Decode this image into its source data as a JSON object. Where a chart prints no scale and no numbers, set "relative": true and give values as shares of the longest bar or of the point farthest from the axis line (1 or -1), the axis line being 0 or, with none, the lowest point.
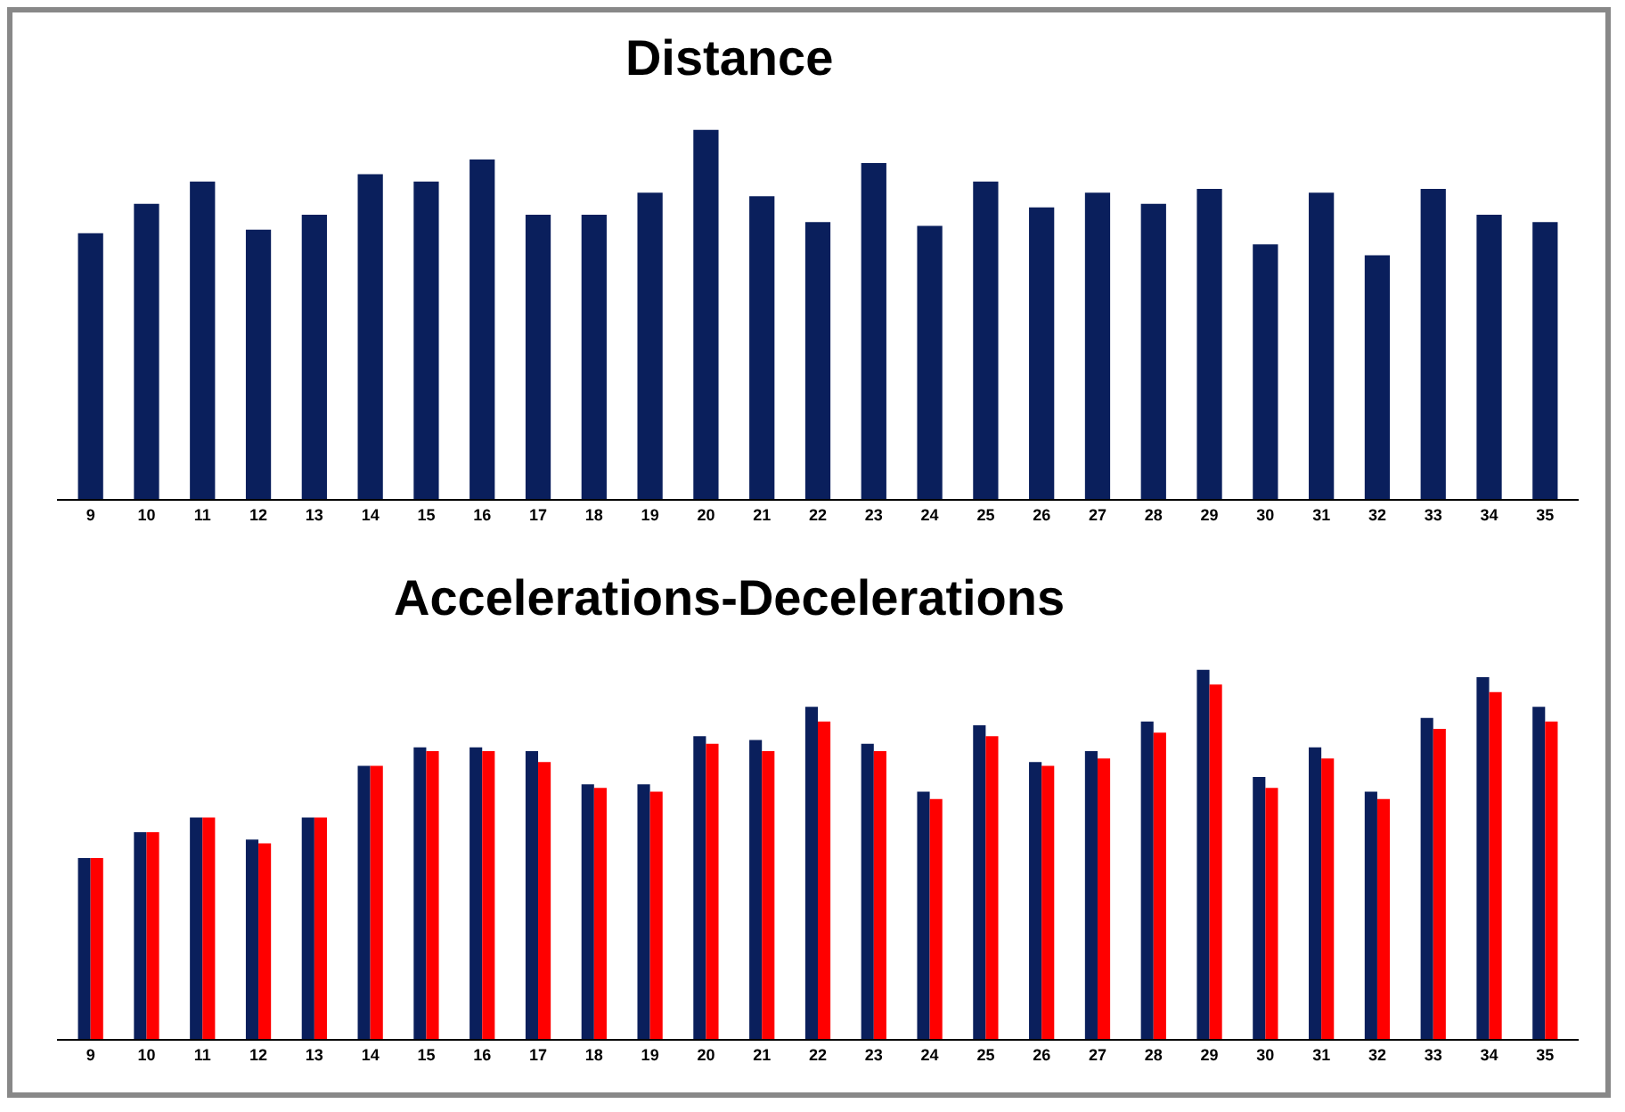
{
  "chart_data": [
    {
      "type": "bar",
      "title": "Distance",
      "relative": true,
      "categories": [
        "9",
        "10",
        "11",
        "12",
        "13",
        "14",
        "15",
        "16",
        "17",
        "18",
        "19",
        "20",
        "21",
        "22",
        "23",
        "24",
        "25",
        "26",
        "27",
        "28",
        "29",
        "30",
        "31",
        "32",
        "33",
        "34",
        "35"
      ],
      "series": [
        {
          "color": "#0a1f5c",
          "values": [
            0.72,
            0.8,
            0.86,
            0.73,
            0.77,
            0.88,
            0.86,
            0.92,
            0.77,
            0.77,
            0.83,
            1,
            0.82,
            0.75,
            0.91,
            0.74,
            0.86,
            0.79,
            0.83,
            0.8,
            0.84,
            0.69,
            0.83,
            0.66,
            0.84,
            0.77,
            0.75
          ]
        }
      ]
    },
    {
      "type": "bar",
      "title": "Accelerations-Decelerations",
      "relative": true,
      "categories": [
        "9",
        "10",
        "11",
        "12",
        "13",
        "14",
        "15",
        "16",
        "17",
        "18",
        "19",
        "20",
        "21",
        "22",
        "23",
        "24",
        "25",
        "26",
        "27",
        "28",
        "29",
        "30",
        "31",
        "32",
        "33",
        "34",
        "35"
      ],
      "series": [
        {
          "color": "#0a1f5c",
          "values": [
            0.49,
            0.56,
            0.6,
            0.54,
            0.6,
            0.74,
            0.79,
            0.79,
            0.78,
            0.69,
            0.69,
            0.82,
            0.81,
            0.9,
            0.8,
            0.67,
            0.85,
            0.75,
            0.78,
            0.86,
            1,
            0.71,
            0.79,
            0.67,
            0.87,
            0.98,
            0.9
          ]
        },
        {
          "color": "#ff0000",
          "values": [
            0.49,
            0.56,
            0.6,
            0.53,
            0.6,
            0.74,
            0.78,
            0.78,
            0.75,
            0.68,
            0.67,
            0.8,
            0.78,
            0.86,
            0.78,
            0.65,
            0.82,
            0.74,
            0.76,
            0.83,
            0.96,
            0.68,
            0.76,
            0.65,
            0.84,
            0.94,
            0.86
          ]
        }
      ]
    }
  ]
}
